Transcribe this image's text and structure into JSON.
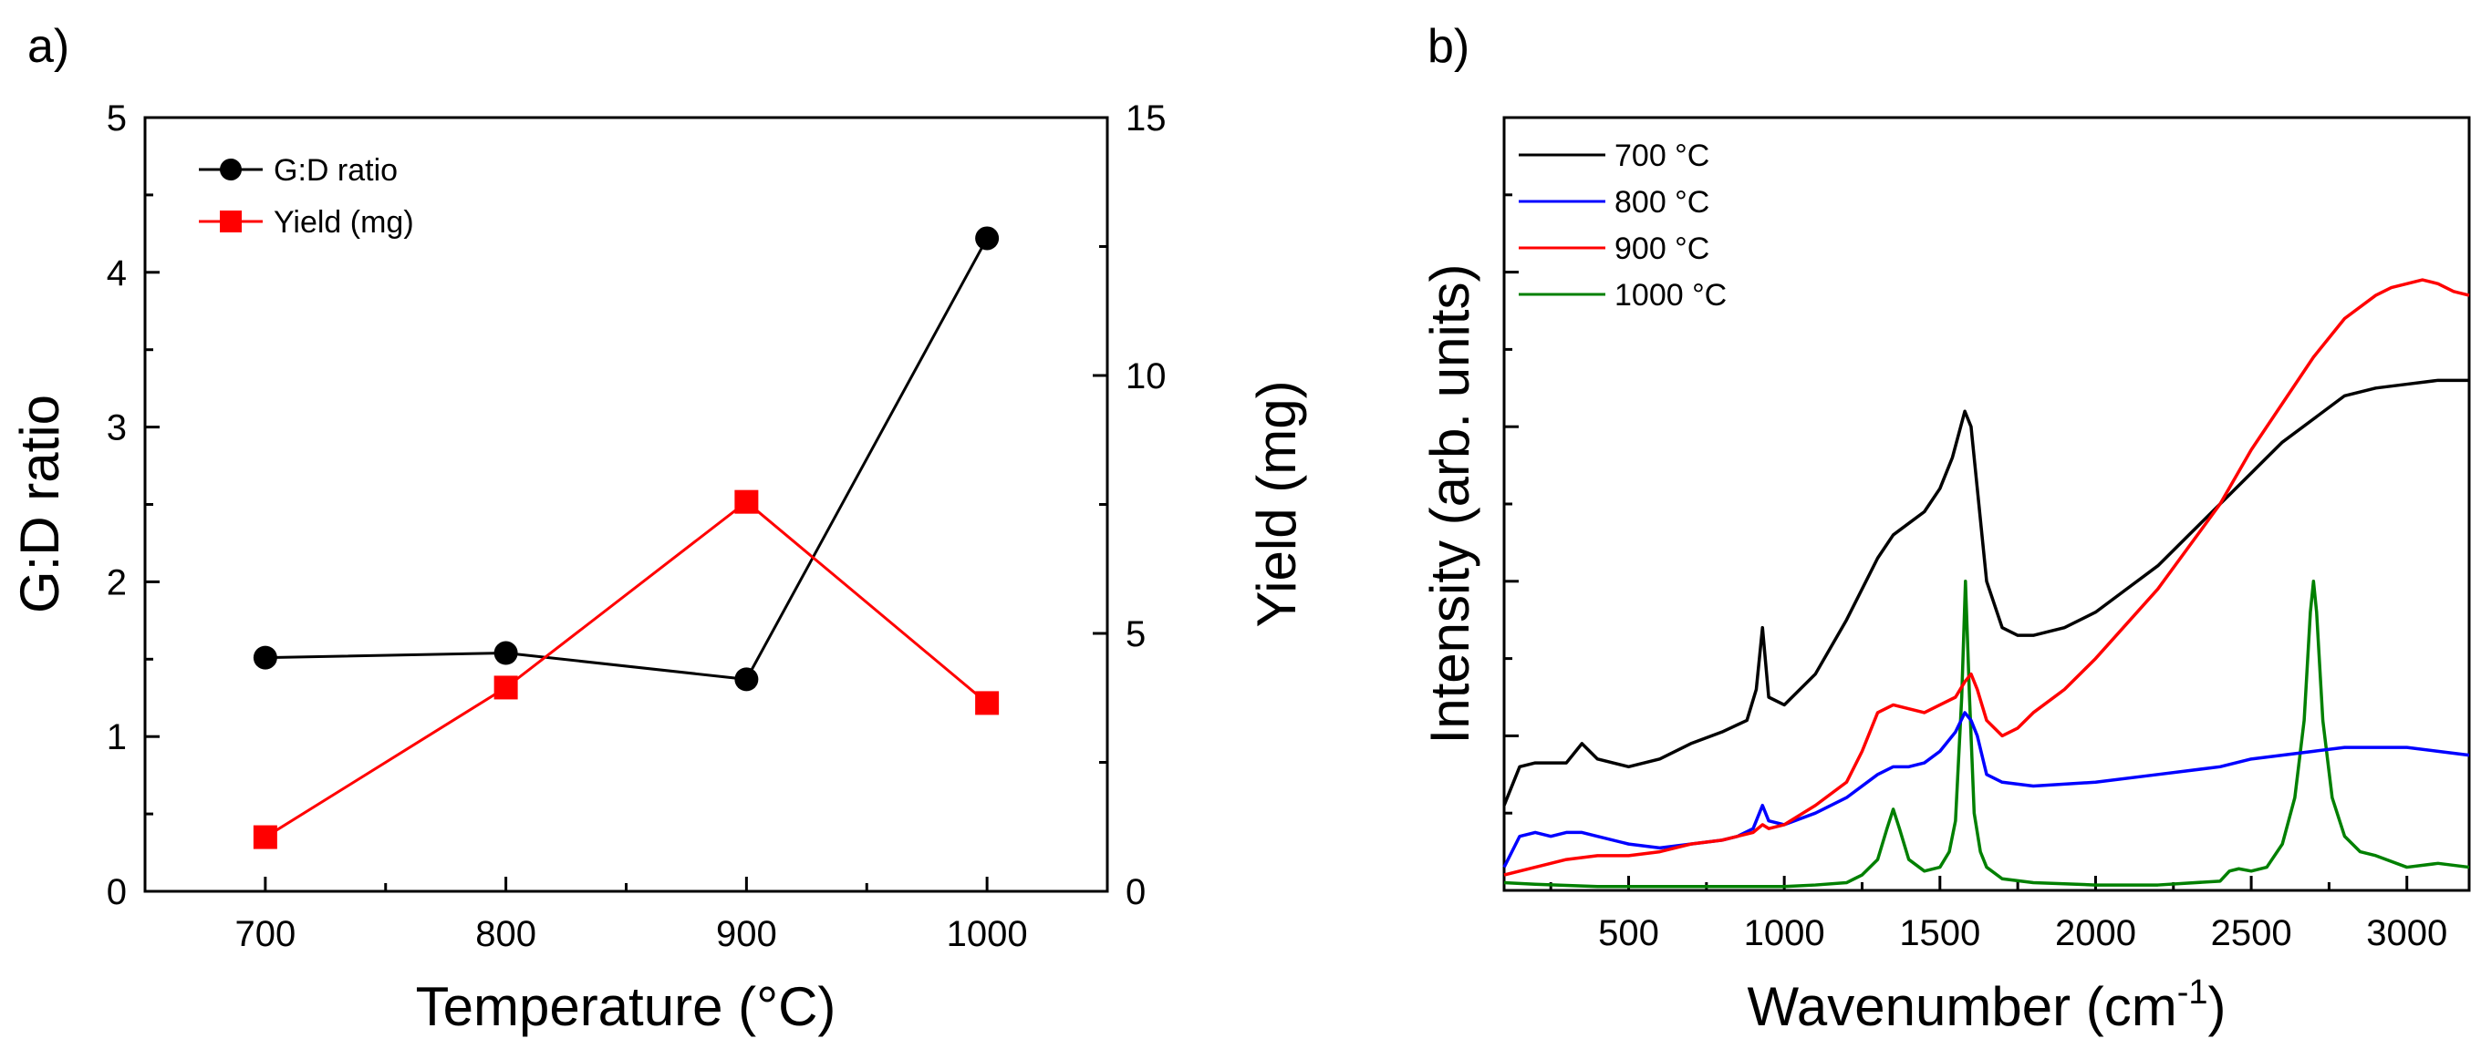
{
  "chart_data": [
    {
      "panel": "a)",
      "type": "line",
      "x": [
        700,
        800,
        900,
        1000
      ],
      "xlabel": "Temperature (°C)",
      "xlim": [
        650,
        1050
      ],
      "xticks": [
        "700",
        "800",
        "900",
        "1000"
      ],
      "ylabel": "G:D ratio",
      "ylim": [
        0,
        5
      ],
      "yticks": [
        "0",
        "1",
        "2",
        "3",
        "4",
        "5"
      ],
      "y2label": "Yield (mg)",
      "y2lim": [
        0,
        15
      ],
      "y2ticks": [
        "0",
        "5",
        "10",
        "15"
      ],
      "series": [
        {
          "name": "G:D ratio",
          "axis": "left",
          "marker": "circle",
          "color": "#000000",
          "values": [
            1.51,
            1.54,
            1.37,
            4.22
          ]
        },
        {
          "name": "Yield (mg)",
          "axis": "right",
          "marker": "square",
          "color": "#ff0000",
          "values": [
            1.05,
            3.95,
            7.55,
            3.65
          ]
        }
      ],
      "legend": "top-left"
    },
    {
      "panel": "b)",
      "type": "line",
      "xlabel": "Wavenumber (cm",
      "xlabel_sup": "-1",
      "xlabel_tail": ")",
      "xlim": [
        100,
        3200
      ],
      "xticks": [
        "500",
        "1000",
        "1500",
        "2000",
        "2500",
        "3000"
      ],
      "ylabel": "Intensity (arb. units)",
      "ylim": [
        0,
        100
      ],
      "legend": "top-left",
      "series": [
        {
          "name": "700 °C",
          "color": "#000000",
          "x": [
            100,
            150,
            200,
            300,
            350,
            400,
            500,
            600,
            700,
            800,
            880,
            910,
            930,
            950,
            1000,
            1100,
            1200,
            1300,
            1350,
            1400,
            1450,
            1500,
            1540,
            1580,
            1600,
            1620,
            1650,
            1700,
            1750,
            1800,
            1900,
            2000,
            2100,
            2200,
            2300,
            2400,
            2500,
            2600,
            2700,
            2800,
            2900,
            3000,
            3100,
            3200
          ],
          "values": [
            11,
            16,
            16.5,
            16.5,
            19,
            17,
            16,
            17,
            19,
            20.5,
            22,
            26,
            34,
            25,
            24,
            28,
            35,
            43,
            46,
            47.5,
            49,
            52,
            56,
            62,
            60,
            52,
            40,
            34,
            33,
            33,
            34,
            36,
            39,
            42,
            46,
            50,
            54,
            58,
            61,
            64,
            65,
            65.5,
            66,
            66
          ]
        },
        {
          "name": "800 °C",
          "color": "#0000ff",
          "x": [
            100,
            150,
            200,
            250,
            300,
            350,
            400,
            500,
            600,
            700,
            800,
            850,
            900,
            930,
            950,
            1000,
            1100,
            1200,
            1300,
            1350,
            1400,
            1450,
            1500,
            1550,
            1580,
            1600,
            1620,
            1650,
            1700,
            1800,
            2000,
            2200,
            2400,
            2500,
            2600,
            2700,
            2800,
            2900,
            3000,
            3100,
            3200
          ],
          "values": [
            3,
            7,
            7.5,
            7,
            7.5,
            7.5,
            7,
            6,
            5.5,
            6,
            6.5,
            7,
            8,
            11,
            9,
            8.5,
            10,
            12,
            15,
            16,
            16,
            16.5,
            18,
            20.5,
            23,
            22,
            20,
            15,
            14,
            13.5,
            14,
            15,
            16,
            17,
            17.5,
            18,
            18.5,
            18.5,
            18.5,
            18,
            17.5
          ]
        },
        {
          "name": "900 °C",
          "color": "#ff0000",
          "x": [
            100,
            200,
            300,
            400,
            500,
            600,
            700,
            800,
            900,
            930,
            950,
            1000,
            1100,
            1200,
            1250,
            1300,
            1350,
            1400,
            1450,
            1500,
            1550,
            1580,
            1600,
            1620,
            1650,
            1700,
            1750,
            1800,
            1900,
            2000,
            2200,
            2400,
            2500,
            2600,
            2700,
            2800,
            2900,
            2950,
            3000,
            3050,
            3100,
            3150,
            3200
          ],
          "values": [
            2,
            3,
            4,
            4.5,
            4.5,
            5,
            6,
            6.5,
            7.5,
            8.5,
            8,
            8.5,
            11,
            14,
            18,
            23,
            24,
            23.5,
            23,
            24,
            25,
            27,
            28,
            26,
            22,
            20,
            21,
            23,
            26,
            30,
            39,
            50,
            57,
            63,
            69,
            74,
            77,
            78,
            78.5,
            79,
            78.5,
            77.5,
            77
          ]
        },
        {
          "name": "1000 °C",
          "color": "#008000",
          "x": [
            100,
            200,
            400,
            600,
            800,
            1000,
            1100,
            1200,
            1250,
            1300,
            1330,
            1350,
            1370,
            1400,
            1450,
            1500,
            1530,
            1550,
            1570,
            1582,
            1595,
            1610,
            1630,
            1650,
            1700,
            1800,
            2000,
            2200,
            2400,
            2430,
            2460,
            2500,
            2550,
            2600,
            2640,
            2670,
            2690,
            2700,
            2710,
            2730,
            2760,
            2800,
            2850,
            2900,
            3000,
            3100,
            3200
          ],
          "values": [
            1,
            0.8,
            0.5,
            0.5,
            0.5,
            0.5,
            0.7,
            1,
            2,
            4,
            8,
            10.5,
            8,
            4,
            2.5,
            3,
            5,
            9,
            25,
            40,
            25,
            10,
            5,
            3,
            1.5,
            1,
            0.7,
            0.7,
            1.2,
            2.5,
            2.8,
            2.5,
            3,
            6,
            12,
            22,
            36,
            40,
            36,
            22,
            12,
            7,
            5,
            4.5,
            3,
            3.5,
            3
          ]
        }
      ]
    }
  ]
}
